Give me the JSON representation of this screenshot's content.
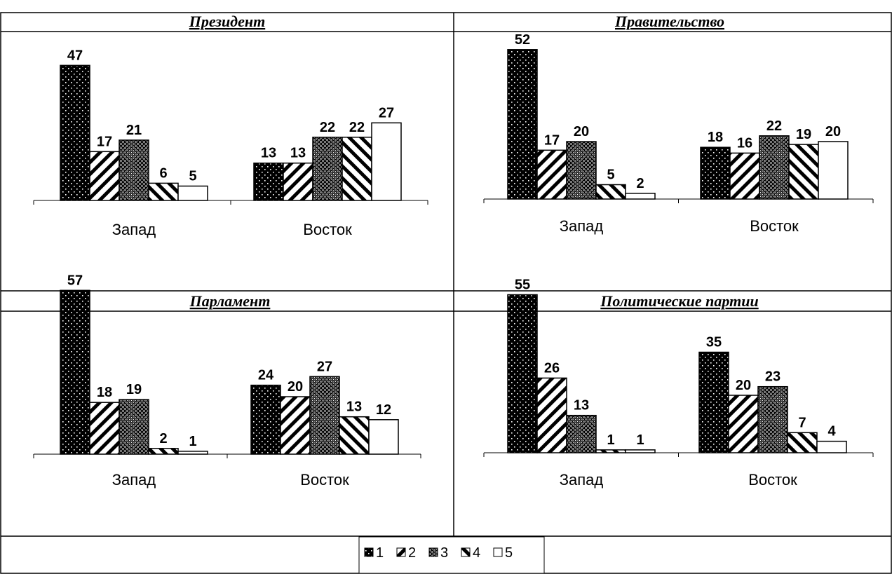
{
  "legend": [
    "1",
    "2",
    "3",
    "4",
    "5"
  ],
  "chart_data": [
    {
      "type": "bar",
      "title": "Президент",
      "categories": [
        "Запад",
        "Восток"
      ],
      "series": [
        {
          "name": "1",
          "values": [
            47,
            13
          ]
        },
        {
          "name": "2",
          "values": [
            17,
            13
          ]
        },
        {
          "name": "3",
          "values": [
            21,
            22
          ]
        },
        {
          "name": "4",
          "values": [
            6,
            22
          ]
        },
        {
          "name": "5",
          "values": [
            5,
            27
          ]
        }
      ],
      "legend_position": "bottom-center"
    },
    {
      "type": "bar",
      "title": "Правительство",
      "categories": [
        "Запад",
        "Восток"
      ],
      "series": [
        {
          "name": "1",
          "values": [
            52,
            18
          ]
        },
        {
          "name": "2",
          "values": [
            17,
            16
          ]
        },
        {
          "name": "3",
          "values": [
            20,
            22
          ]
        },
        {
          "name": "4",
          "values": [
            5,
            19
          ]
        },
        {
          "name": "5",
          "values": [
            2,
            20
          ]
        }
      ],
      "legend_position": "bottom-center"
    },
    {
      "type": "bar",
      "title": "Парламент",
      "categories": [
        "Запад",
        "Восток"
      ],
      "series": [
        {
          "name": "1",
          "values": [
            57,
            24
          ]
        },
        {
          "name": "2",
          "values": [
            18,
            20
          ]
        },
        {
          "name": "3",
          "values": [
            19,
            27
          ]
        },
        {
          "name": "4",
          "values": [
            2,
            13
          ]
        },
        {
          "name": "5",
          "values": [
            1,
            12
          ]
        }
      ],
      "legend_position": "bottom-center"
    },
    {
      "type": "bar",
      "title": "Политические партии",
      "categories": [
        "Запад",
        "Восток"
      ],
      "series": [
        {
          "name": "1",
          "values": [
            55,
            35
          ]
        },
        {
          "name": "2",
          "values": [
            26,
            20
          ]
        },
        {
          "name": "3",
          "values": [
            13,
            23
          ]
        },
        {
          "name": "4",
          "values": [
            1,
            7
          ]
        },
        {
          "name": "5",
          "values": [
            1,
            4
          ]
        }
      ],
      "legend_position": "bottom-center"
    }
  ]
}
